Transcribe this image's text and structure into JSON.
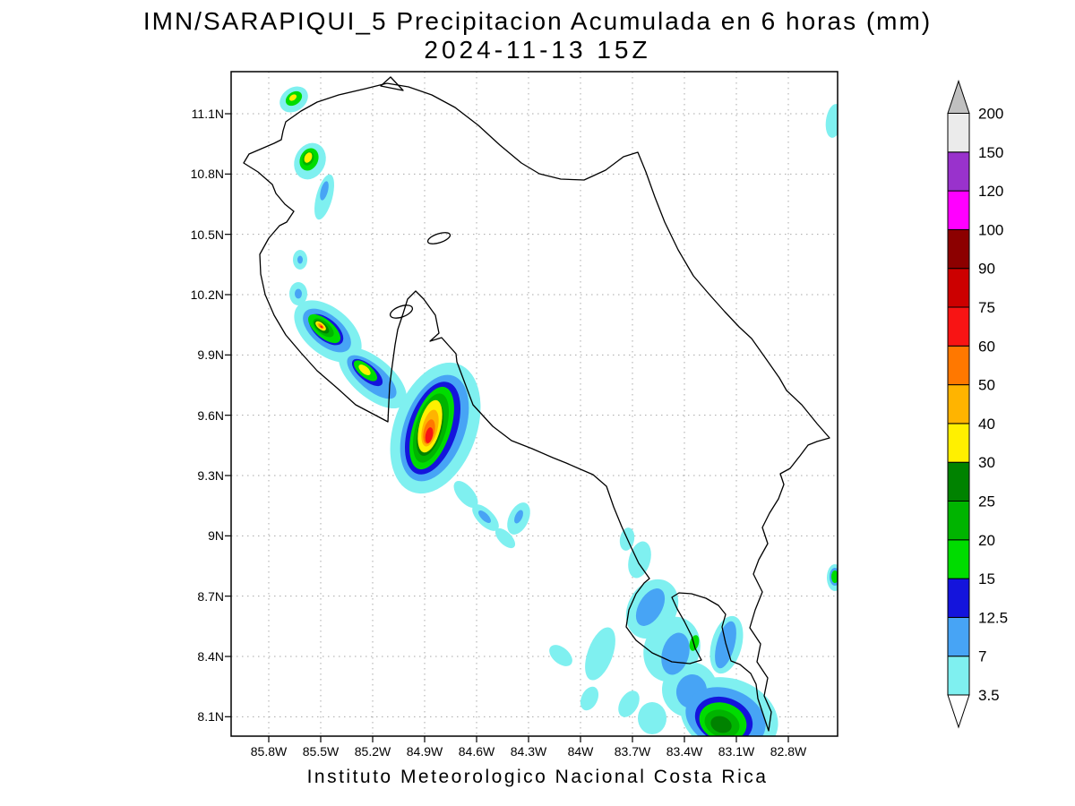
{
  "title": {
    "line1": "IMN/SARAPIQUI_5 Precipitacion Acumulada en 6 horas (mm)",
    "line2": "2024-11-13 15Z"
  },
  "footer": "Instituto Meteorologico Nacional Costa Rica",
  "map": {
    "lat_ticks": [
      "11.1N",
      "10.8N",
      "10.5N",
      "10.2N",
      "9.9N",
      "9.6N",
      "9.3N",
      "9N",
      "8.7N",
      "8.4N",
      "8.1N"
    ],
    "lon_ticks": [
      "85.8W",
      "85.5W",
      "85.2W",
      "84.9W",
      "84.6W",
      "84.3W",
      "84W",
      "83.7W",
      "83.4W",
      "83.1W",
      "82.8W"
    ],
    "units": "mm",
    "region": "Costa Rica"
  },
  "colorbar": {
    "levels_bottom_to_top": [
      "3.5",
      "7",
      "12.5",
      "15",
      "20",
      "25",
      "30",
      "40",
      "50",
      "60",
      "75",
      "90",
      "100",
      "120",
      "150",
      "200"
    ],
    "segment_colors_bottom_to_top": [
      "#7ff0f0",
      "#47a4f5",
      "#1414dc",
      "#00dc00",
      "#00b400",
      "#008200",
      "#fff000",
      "#ffb400",
      "#ff7800",
      "#f81414",
      "#cc0000",
      "#8c0000",
      "#ff00ff",
      "#9932cc",
      "#ebebeb"
    ],
    "under_color": "#ffffff",
    "over_color": "#c0c0c0"
  }
}
